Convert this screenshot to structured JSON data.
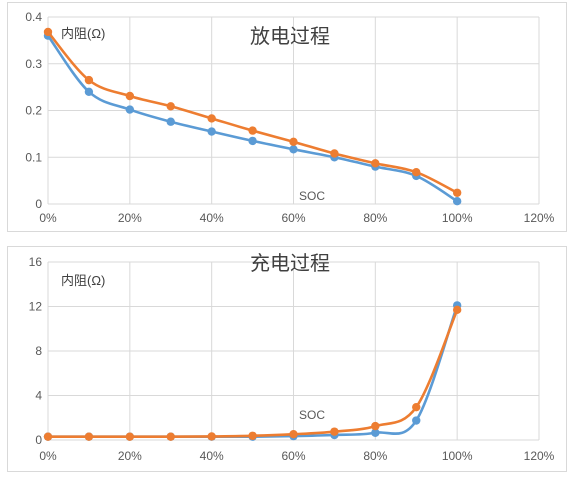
{
  "colors": {
    "blue": "#5b9bd5",
    "orange": "#ed7d31",
    "grid": "#d9d9d9"
  },
  "chart_data": [
    {
      "type": "line",
      "title": "放电过程",
      "ylabel": "内阻(Ω)",
      "xlabel": "SOC",
      "x": [
        0,
        10,
        20,
        30,
        40,
        50,
        60,
        70,
        80,
        90,
        100
      ],
      "xlim": [
        0,
        120
      ],
      "ylim": [
        0,
        0.4
      ],
      "x_ticks": [
        "0%",
        "20%",
        "40%",
        "60%",
        "80%",
        "100%",
        "120%"
      ],
      "y_ticks": [
        "0",
        "0.1",
        "0.2",
        "0.3",
        "0.4"
      ],
      "grid": "horizontal",
      "series": [
        {
          "color": "#5b9bd5",
          "values": [
            0.36,
            0.24,
            0.202,
            0.176,
            0.155,
            0.135,
            0.117,
            0.1,
            0.08,
            0.06,
            0.006
          ]
        },
        {
          "color": "#ed7d31",
          "values": [
            0.368,
            0.265,
            0.231,
            0.209,
            0.183,
            0.157,
            0.133,
            0.108,
            0.087,
            0.068,
            0.024
          ]
        }
      ]
    },
    {
      "type": "line",
      "title": "充电过程",
      "ylabel": "内阻(Ω)",
      "xlabel": "SOC",
      "x": [
        0,
        10,
        20,
        30,
        40,
        50,
        60,
        70,
        80,
        90,
        100
      ],
      "xlim": [
        0,
        120
      ],
      "ylim": [
        0,
        16
      ],
      "x_ticks": [
        "0%",
        "20%",
        "40%",
        "60%",
        "80%",
        "100%",
        "120%"
      ],
      "y_ticks": [
        "0",
        "4",
        "8",
        "12",
        "16"
      ],
      "grid": "horizontal",
      "series": [
        {
          "color": "#5b9bd5",
          "values": [
            0.3,
            0.3,
            0.3,
            0.3,
            0.3,
            0.3,
            0.35,
            0.45,
            0.65,
            1.75,
            12.1
          ]
        },
        {
          "color": "#ed7d31",
          "values": [
            0.3,
            0.3,
            0.3,
            0.3,
            0.32,
            0.38,
            0.52,
            0.75,
            1.25,
            2.95,
            11.7
          ]
        }
      ]
    }
  ]
}
